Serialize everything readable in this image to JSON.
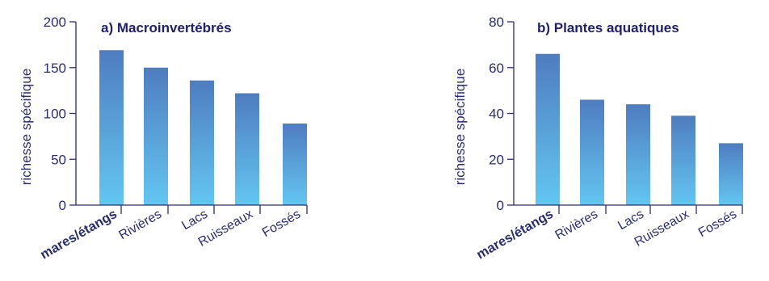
{
  "colors": {
    "axis": "#2b2d6e",
    "text": "#2b2d6e",
    "bar_top": "#4f7cc0",
    "bar_bottom": "#63c6f1"
  },
  "chart_data": [
    {
      "type": "bar",
      "title": "a) Macroinvertébrés",
      "ylabel": "richesse spécifique",
      "xlabel": "",
      "categories": [
        "mares/étangs",
        "Rivières",
        "Lacs",
        "Ruisseaux",
        "Fossés"
      ],
      "emphasized_category": "mares/étangs",
      "values": [
        169,
        150,
        136,
        122,
        89
      ],
      "ylim": [
        0,
        200
      ],
      "yticks": [
        0,
        50,
        100,
        150,
        200
      ],
      "ytick_labels": [
        "0",
        "50",
        "100",
        "150",
        "200"
      ],
      "grid": false,
      "legend": "none"
    },
    {
      "type": "bar",
      "title": "b) Plantes aquatiques",
      "ylabel": "richesse spécifique",
      "xlabel": "",
      "categories": [
        "mares/étangs",
        "Rivières",
        "Lacs",
        "Ruisseaux",
        "Fossés"
      ],
      "emphasized_category": "mares/étangs",
      "values": [
        66,
        46,
        44,
        39,
        27
      ],
      "ylim": [
        0,
        80
      ],
      "yticks": [
        0,
        20,
        40,
        60,
        80
      ],
      "ytick_labels": [
        "0",
        "20",
        "40",
        "60",
        "80"
      ],
      "grid": false,
      "legend": "none"
    }
  ]
}
